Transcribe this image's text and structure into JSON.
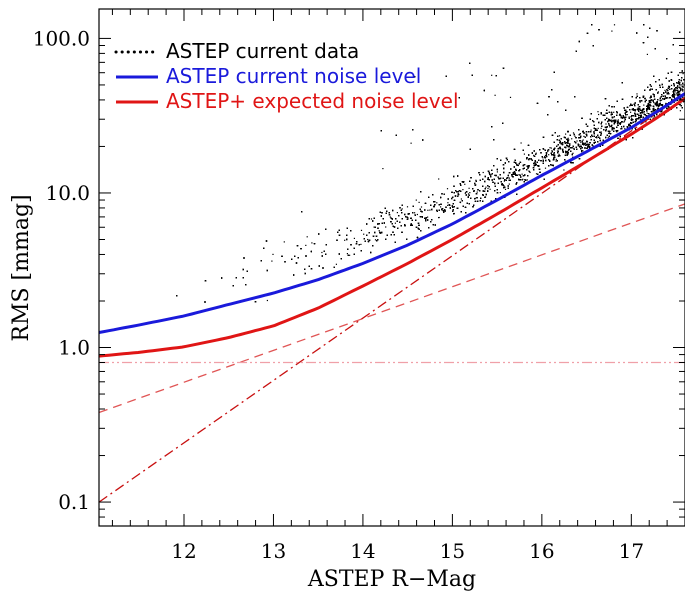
{
  "chart_data": {
    "type": "scatter",
    "title": "",
    "xlabel": "ASTEP R−Mag",
    "ylabel": "RMS [mmag]",
    "xlim": [
      11.05,
      17.6
    ],
    "ylim": [
      0.07,
      155
    ],
    "yscale": "log",
    "x_ticks": [
      12,
      13,
      14,
      15,
      16,
      17
    ],
    "x_tick_labels": [
      "12",
      "13",
      "14",
      "15",
      "16",
      "17"
    ],
    "x_minor_step": 0.2,
    "y_ticks": [
      0.1,
      1.0,
      10.0,
      100.0
    ],
    "y_tick_labels": [
      "0.1",
      "1.0",
      "10.0",
      "100.0"
    ],
    "legend": {
      "position": "top-left",
      "entries": [
        {
          "label": "ASTEP current data",
          "color": "#000000",
          "style": "dotted"
        },
        {
          "label": "ASTEP current noise level",
          "color": "#1a1adb",
          "style": "solid"
        },
        {
          "label": "ASTEP+ expected noise level",
          "color": "#e01515",
          "style": "solid"
        }
      ]
    },
    "series": [
      {
        "name": "ASTEP current data",
        "kind": "scatter",
        "color": "#000000",
        "ridge_x": [
          11.4,
          12.0,
          13.0,
          14.0,
          15.0,
          16.0,
          17.0,
          17.6
        ],
        "ridge_y": [
          1.9,
          2.2,
          3.2,
          5.2,
          8.8,
          16.5,
          32.0,
          48.0
        ],
        "n_points": 9000
      },
      {
        "name": "ASTEP current noise level",
        "kind": "line",
        "color": "#1a1adb",
        "x": [
          11.05,
          11.5,
          12.0,
          12.5,
          13.0,
          13.5,
          14.0,
          14.5,
          15.0,
          15.5,
          16.0,
          16.5,
          17.0,
          17.3,
          17.6
        ],
        "y": [
          1.25,
          1.4,
          1.6,
          1.9,
          2.25,
          2.75,
          3.5,
          4.6,
          6.3,
          9.0,
          13.0,
          18.5,
          26.5,
          34.0,
          44.0
        ]
      },
      {
        "name": "ASTEP+ expected noise level",
        "kind": "line",
        "color": "#e01515",
        "x": [
          11.05,
          11.5,
          12.0,
          12.5,
          13.0,
          13.5,
          14.0,
          14.5,
          15.0,
          15.5,
          16.0,
          16.5,
          17.0,
          17.3,
          17.6
        ],
        "y": [
          0.88,
          0.93,
          1.01,
          1.16,
          1.38,
          1.8,
          2.5,
          3.5,
          5.0,
          7.3,
          10.8,
          16.0,
          24.0,
          31.0,
          41.0
        ]
      },
      {
        "kind": "component",
        "style": "dashed",
        "color": "#e05555",
        "x": [
          11.05,
          17.6
        ],
        "y": [
          0.38,
          8.5
        ]
      },
      {
        "kind": "component",
        "style": "dash-dot",
        "color": "#c81010",
        "x": [
          11.05,
          17.6
        ],
        "y": [
          0.1,
          44.0
        ]
      },
      {
        "kind": "component",
        "style": "dash-dot-dot",
        "color": "#f0a0a8",
        "x": [
          11.05,
          17.6
        ],
        "y": [
          0.8,
          0.8
        ]
      }
    ]
  }
}
